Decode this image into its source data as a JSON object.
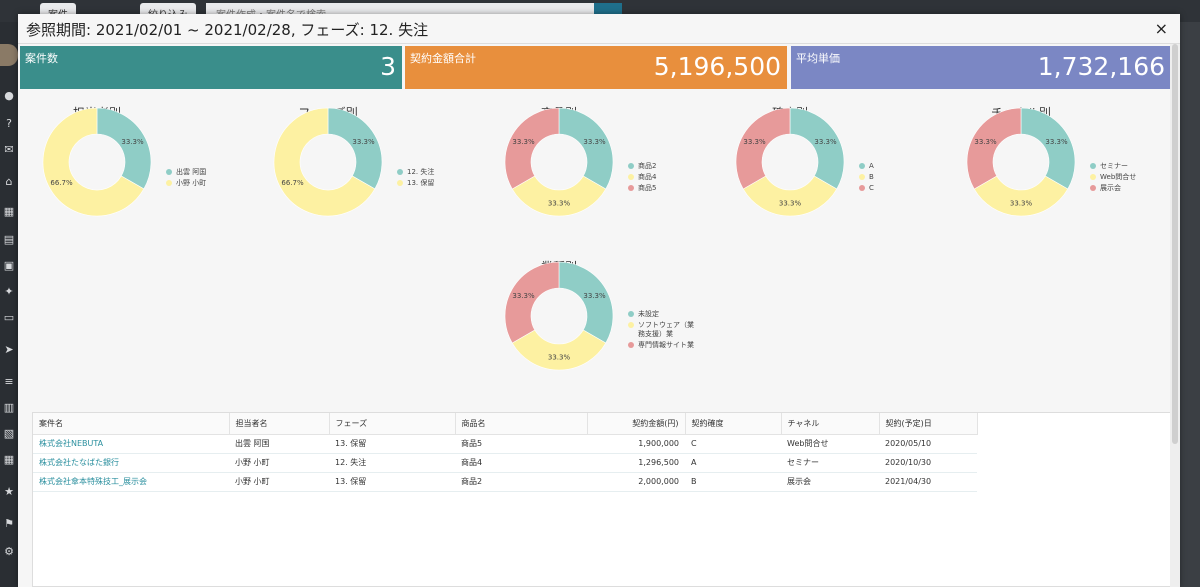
{
  "background": {
    "tabs": [
      "案件",
      "絞り込み"
    ],
    "search_placeholder": "案件作成・案件名で検索"
  },
  "modal": {
    "title": "参照期間: 2021/02/01 ~ 2021/02/28, フェーズ: 12. 失注",
    "close": "×"
  },
  "kpis": [
    {
      "label": "案件数",
      "value": "3",
      "color": "#3a8e8b"
    },
    {
      "label": "契約金額合計",
      "value": "5,196,500",
      "color": "#e88f3d"
    },
    {
      "label": "平均単価",
      "value": "1,732,166",
      "color": "#7b87c4"
    }
  ],
  "palette": {
    "teal": "#8fcdc6",
    "yellow": "#fdf1a2",
    "pink": "#e79a9a"
  },
  "charts": [
    {
      "title": "担当者別",
      "slices": [
        {
          "label": "出雲 阿国",
          "pct": "33.3%",
          "value": 33.3,
          "color": "#8fcdc6"
        },
        {
          "label": "小野 小町",
          "pct": "66.7%",
          "value": 66.7,
          "color": "#fdf1a2"
        }
      ]
    },
    {
      "title": "フェーズ別",
      "slices": [
        {
          "label": "12. 失注",
          "pct": "33.3%",
          "value": 33.3,
          "color": "#8fcdc6"
        },
        {
          "label": "13. 保留",
          "pct": "66.7%",
          "value": 66.7,
          "color": "#fdf1a2"
        }
      ]
    },
    {
      "title": "商品別",
      "slices": [
        {
          "label": "商品2",
          "pct": "33.3%",
          "value": 33.3,
          "color": "#8fcdc6"
        },
        {
          "label": "商品4",
          "pct": "33.3%",
          "value": 33.3,
          "color": "#fdf1a2"
        },
        {
          "label": "商品5",
          "pct": "33.3%",
          "value": 33.3,
          "color": "#e79a9a"
        }
      ]
    },
    {
      "title": "確度別",
      "slices": [
        {
          "label": "A",
          "pct": "33.3%",
          "value": 33.3,
          "color": "#8fcdc6"
        },
        {
          "label": "B",
          "pct": "33.3%",
          "value": 33.3,
          "color": "#fdf1a2"
        },
        {
          "label": "C",
          "pct": "33.3%",
          "value": 33.3,
          "color": "#e79a9a"
        }
      ]
    },
    {
      "title": "チャネル別",
      "slices": [
        {
          "label": "セミナー",
          "pct": "33.3%",
          "value": 33.3,
          "color": "#8fcdc6"
        },
        {
          "label": "Web問合せ",
          "pct": "33.3%",
          "value": 33.3,
          "color": "#fdf1a2"
        },
        {
          "label": "展示会",
          "pct": "33.3%",
          "value": 33.3,
          "color": "#e79a9a"
        }
      ]
    },
    {
      "title": "業種別",
      "slices": [
        {
          "label": "未設定",
          "pct": "33.3%",
          "value": 33.3,
          "color": "#8fcdc6"
        },
        {
          "label": "ソフトウェア（業務支援）業",
          "pct": "33.3%",
          "value": 33.3,
          "color": "#fdf1a2"
        },
        {
          "label": "専門情報サイト業",
          "pct": "33.3%",
          "value": 33.3,
          "color": "#e79a9a"
        }
      ]
    }
  ],
  "table": {
    "headers": [
      "案件名",
      "担当者名",
      "フェーズ",
      "商品名",
      "契約金額(円)",
      "契約確度",
      "チャネル",
      "契約(予定)日"
    ],
    "rows": [
      [
        "株式会社NEBUTA",
        "出雲 阿国",
        "13. 保留",
        "商品5",
        "1,900,000",
        "C",
        "Web問合せ",
        "2020/05/10"
      ],
      [
        "株式会社たなばた銀行",
        "小野 小町",
        "12. 失注",
        "商品4",
        "1,296,500",
        "A",
        "セミナー",
        "2020/10/30"
      ],
      [
        "株式会社傘本特殊技工_展示会",
        "小野 小町",
        "13. 保留",
        "商品2",
        "2,000,000",
        "B",
        "展示会",
        "2021/04/30"
      ]
    ]
  }
}
